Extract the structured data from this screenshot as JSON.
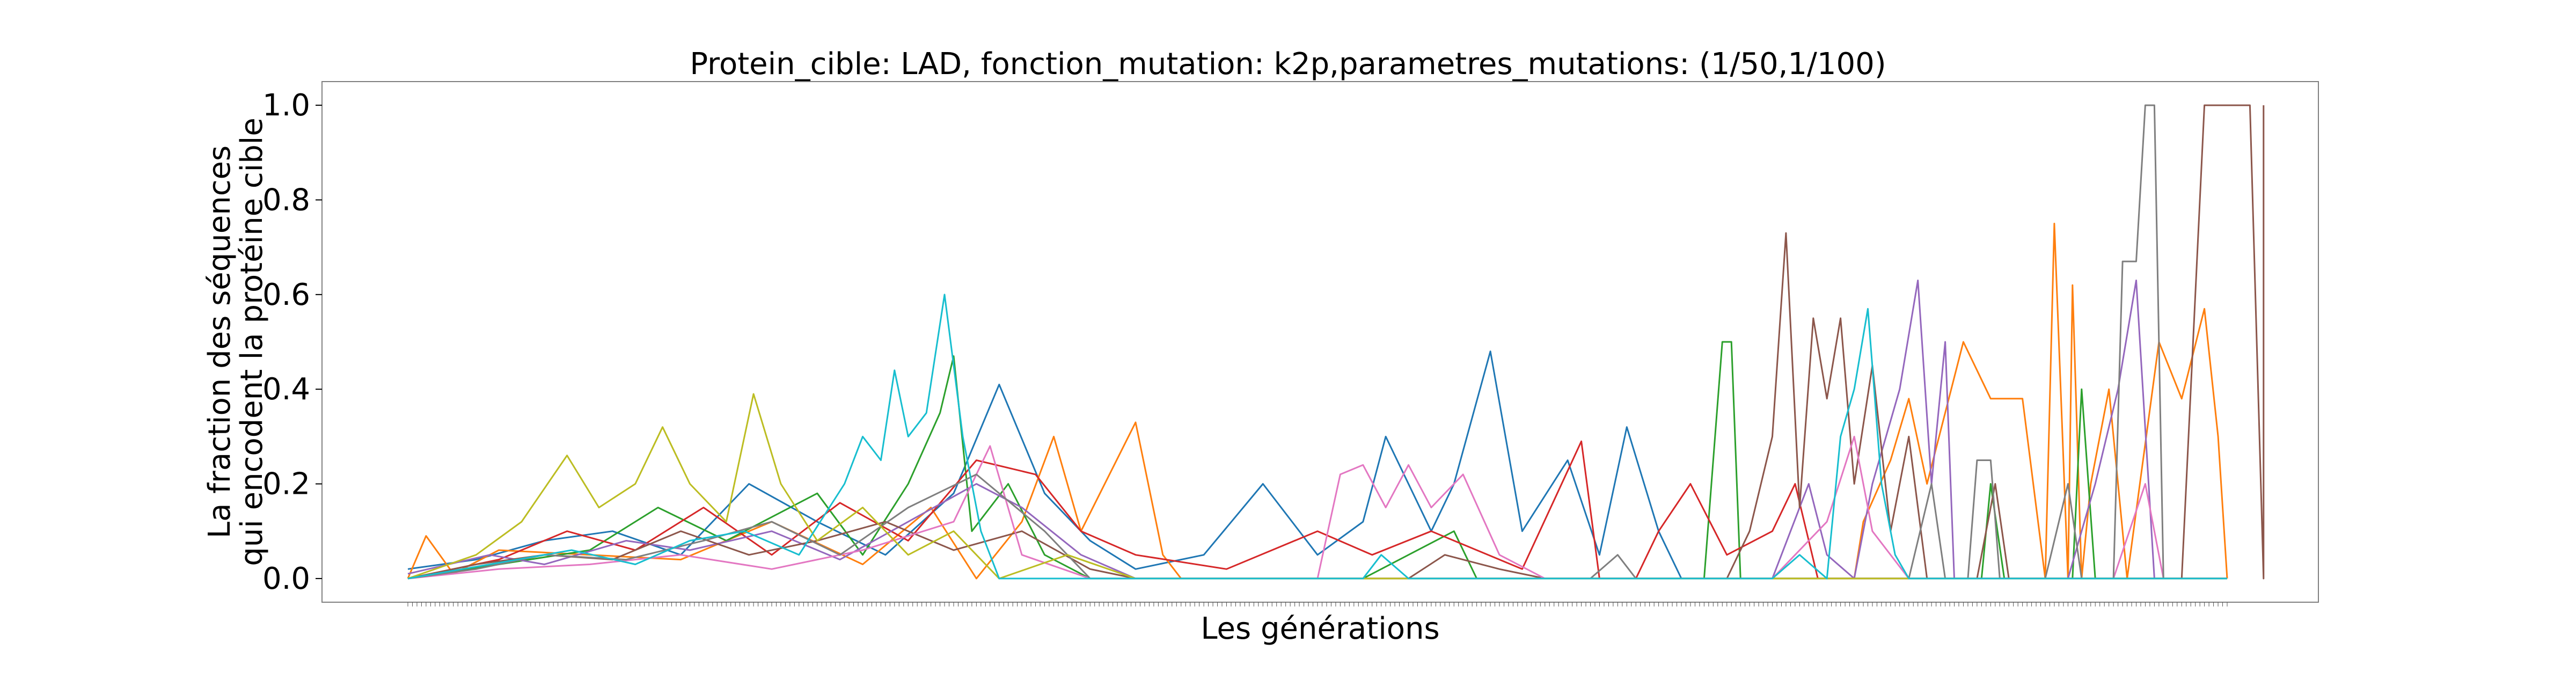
{
  "chart_data": {
    "type": "line",
    "title": "Protein_cible: LAD, fonction_mutation: k2p,parametres_mutations: (1/50,1/100)",
    "xlabel": "Les générations",
    "ylabel_lines": [
      "La fraction des séquences",
      "qui encodent la protéine cible"
    ],
    "ylim": [
      -0.05,
      1.05
    ],
    "yticks": [
      0.0,
      0.2,
      0.4,
      0.6,
      0.8,
      1.0
    ],
    "ytick_labels": [
      "0.0",
      "0.2",
      "0.4",
      "0.6",
      "0.8",
      "1.0"
    ],
    "x_range": [
      0,
      400
    ],
    "grid": false,
    "legend": "none",
    "series": [
      {
        "color": "#1f77b4",
        "points": [
          [
            0,
            0.02
          ],
          [
            15,
            0.04
          ],
          [
            30,
            0.08
          ],
          [
            45,
            0.1
          ],
          [
            60,
            0.05
          ],
          [
            75,
            0.2
          ],
          [
            90,
            0.12
          ],
          [
            105,
            0.05
          ],
          [
            120,
            0.18
          ],
          [
            130,
            0.41
          ],
          [
            140,
            0.18
          ],
          [
            150,
            0.08
          ],
          [
            160,
            0.02
          ],
          [
            175,
            0.05
          ],
          [
            188,
            0.2
          ],
          [
            200,
            0.05
          ],
          [
            210,
            0.12
          ],
          [
            215,
            0.3
          ],
          [
            220,
            0.2
          ],
          [
            225,
            0.1
          ],
          [
            230,
            0.2
          ],
          [
            238,
            0.48
          ],
          [
            245,
            0.1
          ],
          [
            255,
            0.25
          ],
          [
            262,
            0.05
          ],
          [
            268,
            0.32
          ],
          [
            275,
            0.1
          ],
          [
            280,
            0.0
          ],
          [
            400,
            0.0
          ]
        ]
      },
      {
        "color": "#ff7f0e",
        "points": [
          [
            0,
            0.0
          ],
          [
            4,
            0.09
          ],
          [
            10,
            0.01
          ],
          [
            20,
            0.06
          ],
          [
            40,
            0.05
          ],
          [
            60,
            0.04
          ],
          [
            80,
            0.12
          ],
          [
            100,
            0.03
          ],
          [
            115,
            0.15
          ],
          [
            125,
            0.0
          ],
          [
            135,
            0.12
          ],
          [
            142,
            0.3
          ],
          [
            148,
            0.1
          ],
          [
            160,
            0.33
          ],
          [
            166,
            0.05
          ],
          [
            170,
            0.0
          ],
          [
            318,
            0.0
          ],
          [
            320,
            0.12
          ],
          [
            326,
            0.25
          ],
          [
            330,
            0.38
          ],
          [
            334,
            0.2
          ],
          [
            342,
            0.5
          ],
          [
            348,
            0.38
          ],
          [
            355,
            0.38
          ],
          [
            362,
            0.75
          ],
          [
            366,
            0.62
          ],
          [
            370,
            0.2
          ],
          [
            374,
            0.4
          ],
          [
            378,
            0.0
          ],
          [
            360,
            0.0
          ],
          [
            365,
            0.0
          ],
          [
            368,
            0.0
          ],
          [
            385,
            0.5
          ],
          [
            390,
            0.38
          ],
          [
            395,
            0.57
          ],
          [
            398,
            0.3
          ],
          [
            400,
            0.0
          ]
        ]
      },
      {
        "color": "#2ca02c",
        "points": [
          [
            0,
            0.0
          ],
          [
            20,
            0.03
          ],
          [
            40,
            0.06
          ],
          [
            55,
            0.15
          ],
          [
            70,
            0.08
          ],
          [
            90,
            0.18
          ],
          [
            100,
            0.05
          ],
          [
            110,
            0.2
          ],
          [
            117,
            0.35
          ],
          [
            120,
            0.47
          ],
          [
            124,
            0.1
          ],
          [
            132,
            0.2
          ],
          [
            140,
            0.05
          ],
          [
            150,
            0.0
          ],
          [
            210,
            0.0
          ],
          [
            220,
            0.05
          ],
          [
            230,
            0.1
          ],
          [
            235,
            0.0
          ],
          [
            285,
            0.0
          ],
          [
            289,
            0.5
          ],
          [
            291,
            0.5
          ],
          [
            293,
            0.0
          ],
          [
            366,
            0.0
          ],
          [
            368,
            0.4
          ],
          [
            371,
            0.0
          ],
          [
            346,
            0.0
          ],
          [
            348,
            0.2
          ],
          [
            351,
            0.0
          ],
          [
            400,
            0.0
          ]
        ]
      },
      {
        "color": "#d62728",
        "points": [
          [
            0,
            0.0
          ],
          [
            20,
            0.04
          ],
          [
            35,
            0.1
          ],
          [
            50,
            0.06
          ],
          [
            65,
            0.15
          ],
          [
            80,
            0.05
          ],
          [
            95,
            0.16
          ],
          [
            110,
            0.08
          ],
          [
            125,
            0.25
          ],
          [
            138,
            0.22
          ],
          [
            148,
            0.1
          ],
          [
            160,
            0.05
          ],
          [
            180,
            0.02
          ],
          [
            200,
            0.1
          ],
          [
            212,
            0.05
          ],
          [
            225,
            0.1
          ],
          [
            245,
            0.02
          ],
          [
            258,
            0.29
          ],
          [
            262,
            0.0
          ],
          [
            270,
            0.0
          ],
          [
            275,
            0.1
          ],
          [
            282,
            0.2
          ],
          [
            290,
            0.05
          ],
          [
            300,
            0.1
          ],
          [
            305,
            0.2
          ],
          [
            310,
            0.0
          ],
          [
            400,
            0.0
          ]
        ]
      },
      {
        "color": "#9467bd",
        "points": [
          [
            0,
            0.01
          ],
          [
            18,
            0.05
          ],
          [
            30,
            0.03
          ],
          [
            48,
            0.08
          ],
          [
            62,
            0.06
          ],
          [
            80,
            0.1
          ],
          [
            95,
            0.04
          ],
          [
            110,
            0.12
          ],
          [
            125,
            0.2
          ],
          [
            135,
            0.15
          ],
          [
            148,
            0.05
          ],
          [
            160,
            0.0
          ],
          [
            300,
            0.0
          ],
          [
            304,
            0.1
          ],
          [
            308,
            0.2
          ],
          [
            312,
            0.05
          ],
          [
            318,
            0.0
          ],
          [
            322,
            0.2
          ],
          [
            328,
            0.4
          ],
          [
            332,
            0.63
          ],
          [
            335,
            0.2
          ],
          [
            338,
            0.5
          ],
          [
            340,
            0.0
          ],
          [
            365,
            0.0
          ],
          [
            371,
            0.2
          ],
          [
            376,
            0.4
          ],
          [
            380,
            0.63
          ],
          [
            384,
            0.0
          ],
          [
            386,
            0.0
          ],
          [
            400,
            0.0
          ]
        ]
      },
      {
        "color": "#8c564b",
        "points": [
          [
            0,
            0.0
          ],
          [
            15,
            0.03
          ],
          [
            30,
            0.05
          ],
          [
            45,
            0.04
          ],
          [
            60,
            0.1
          ],
          [
            75,
            0.05
          ],
          [
            90,
            0.08
          ],
          [
            105,
            0.12
          ],
          [
            120,
            0.06
          ],
          [
            135,
            0.1
          ],
          [
            150,
            0.02
          ],
          [
            160,
            0.0
          ],
          [
            220,
            0.0
          ],
          [
            228,
            0.05
          ],
          [
            240,
            0.02
          ],
          [
            250,
            0.0
          ],
          [
            290,
            0.0
          ],
          [
            295,
            0.1
          ],
          [
            300,
            0.3
          ],
          [
            303,
            0.73
          ],
          [
            306,
            0.15
          ],
          [
            309,
            0.55
          ],
          [
            312,
            0.38
          ],
          [
            315,
            0.55
          ],
          [
            318,
            0.2
          ],
          [
            322,
            0.45
          ],
          [
            326,
            0.1
          ],
          [
            330,
            0.3
          ],
          [
            334,
            0.0
          ],
          [
            345,
            0.0
          ],
          [
            349,
            0.2
          ],
          [
            352,
            0.0
          ],
          [
            390,
            0.0
          ],
          [
            395,
            1.0
          ],
          [
            405,
            1.0
          ],
          [
            408,
            0.0
          ],
          [
            408,
            1.0
          ],
          [
            400,
            1.0
          ]
        ]
      },
      {
        "color": "#e377c2",
        "points": [
          [
            0,
            0.0
          ],
          [
            20,
            0.02
          ],
          [
            40,
            0.03
          ],
          [
            60,
            0.05
          ],
          [
            80,
            0.02
          ],
          [
            100,
            0.06
          ],
          [
            120,
            0.12
          ],
          [
            128,
            0.28
          ],
          [
            135,
            0.05
          ],
          [
            150,
            0.0
          ],
          [
            200,
            0.0
          ],
          [
            205,
            0.22
          ],
          [
            210,
            0.24
          ],
          [
            215,
            0.15
          ],
          [
            220,
            0.24
          ],
          [
            225,
            0.15
          ],
          [
            232,
            0.22
          ],
          [
            240,
            0.05
          ],
          [
            250,
            0.0
          ],
          [
            300,
            0.0
          ],
          [
            305,
            0.05
          ],
          [
            312,
            0.12
          ],
          [
            318,
            0.3
          ],
          [
            322,
            0.1
          ],
          [
            330,
            0.0
          ],
          [
            375,
            0.0
          ],
          [
            382,
            0.2
          ],
          [
            386,
            0.0
          ],
          [
            400,
            0.0
          ]
        ]
      },
      {
        "color": "#7f7f7f",
        "points": [
          [
            0,
            0.0
          ],
          [
            15,
            0.02
          ],
          [
            30,
            0.05
          ],
          [
            48,
            0.04
          ],
          [
            65,
            0.08
          ],
          [
            80,
            0.12
          ],
          [
            95,
            0.05
          ],
          [
            110,
            0.15
          ],
          [
            125,
            0.22
          ],
          [
            140,
            0.1
          ],
          [
            150,
            0.0
          ],
          [
            260,
            0.0
          ],
          [
            266,
            0.05
          ],
          [
            270,
            0.0
          ],
          [
            330,
            0.0
          ],
          [
            335,
            0.2
          ],
          [
            338,
            0.0
          ],
          [
            355,
            0.0
          ],
          [
            360,
            0.0
          ],
          [
            365,
            0.2
          ],
          [
            368,
            0.0
          ],
          [
            343,
            0.0
          ],
          [
            345,
            0.25
          ],
          [
            348,
            0.25
          ],
          [
            350,
            0.0
          ],
          [
            375,
            0.0
          ],
          [
            377,
            0.67
          ],
          [
            380,
            0.67
          ],
          [
            382,
            1.0
          ],
          [
            384,
            1.0
          ],
          [
            386,
            0.0
          ],
          [
            400,
            0.0
          ]
        ]
      },
      {
        "color": "#bcbd22",
        "points": [
          [
            0,
            0.0
          ],
          [
            15,
            0.05
          ],
          [
            25,
            0.12
          ],
          [
            35,
            0.26
          ],
          [
            42,
            0.15
          ],
          [
            50,
            0.2
          ],
          [
            56,
            0.32
          ],
          [
            62,
            0.2
          ],
          [
            70,
            0.12
          ],
          [
            76,
            0.39
          ],
          [
            82,
            0.2
          ],
          [
            90,
            0.08
          ],
          [
            100,
            0.15
          ],
          [
            110,
            0.05
          ],
          [
            120,
            0.1
          ],
          [
            130,
            0.0
          ],
          [
            145,
            0.05
          ],
          [
            160,
            0.0
          ],
          [
            400,
            0.0
          ]
        ]
      },
      {
        "color": "#17becf",
        "points": [
          [
            0,
            0.0
          ],
          [
            12,
            0.02
          ],
          [
            24,
            0.04
          ],
          [
            36,
            0.06
          ],
          [
            50,
            0.03
          ],
          [
            62,
            0.08
          ],
          [
            74,
            0.1
          ],
          [
            86,
            0.05
          ],
          [
            96,
            0.2
          ],
          [
            100,
            0.3
          ],
          [
            104,
            0.25
          ],
          [
            107,
            0.44
          ],
          [
            110,
            0.3
          ],
          [
            114,
            0.35
          ],
          [
            118,
            0.6
          ],
          [
            122,
            0.3
          ],
          [
            126,
            0.1
          ],
          [
            130,
            0.0
          ],
          [
            210,
            0.0
          ],
          [
            214,
            0.05
          ],
          [
            220,
            0.0
          ],
          [
            300,
            0.0
          ],
          [
            306,
            0.05
          ],
          [
            312,
            0.0
          ],
          [
            315,
            0.3
          ],
          [
            318,
            0.4
          ],
          [
            321,
            0.57
          ],
          [
            324,
            0.2
          ],
          [
            327,
            0.05
          ],
          [
            330,
            0.0
          ],
          [
            400,
            0.0
          ]
        ]
      }
    ]
  }
}
